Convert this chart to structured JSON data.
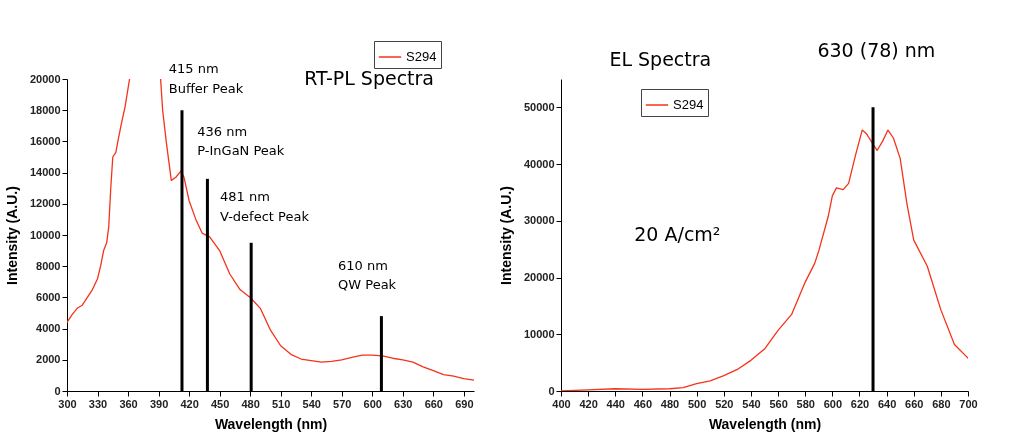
{
  "chart_data": [
    {
      "type": "line",
      "title": "RT-PL Spectra",
      "xlabel": "Wavelength (nm)",
      "ylabel": "Intensity (A.U.)",
      "xlim": [
        300,
        700
      ],
      "xticks": [
        300,
        330,
        360,
        390,
        420,
        450,
        480,
        510,
        540,
        570,
        600,
        630,
        660,
        690
      ],
      "ylim": [
        0,
        20000
      ],
      "yticks": [
        0,
        2000,
        4000,
        6000,
        8000,
        10000,
        12000,
        14000,
        16000,
        18000,
        20000
      ],
      "legend": "top right",
      "series": [
        {
          "name": "S294",
          "color": "#f5331a",
          "x": [
            300,
            305,
            310,
            315,
            320,
            325,
            330,
            333,
            336,
            339,
            341,
            343,
            345,
            348,
            350,
            353,
            357,
            361.5,
            375,
            392,
            394,
            397.5,
            402.5,
            407,
            412,
            415,
            420,
            426.6,
            433,
            440,
            450,
            460,
            470,
            480,
            490,
            500,
            510,
            520,
            530,
            540,
            550,
            560,
            570,
            580,
            590,
            600,
            610,
            620,
            630,
            640,
            650,
            660,
            670,
            680,
            690,
            700
          ],
          "values": [
            4400,
            4900,
            5300,
            5500,
            6000,
            6500,
            7200,
            8000,
            9000,
            9500,
            10500,
            13000,
            15000,
            15300,
            16000,
            17000,
            18200,
            20000,
            null,
            20000,
            18000,
            16000,
            13500,
            13700,
            14100,
            13700,
            12200,
            11000,
            10100,
            9900,
            9000,
            7500,
            6500,
            6000,
            5300,
            3900,
            2900,
            2350,
            2050,
            1950,
            1850,
            1900,
            2000,
            2150,
            2300,
            2300,
            2250,
            2100,
            2000,
            1850,
            1550,
            1300,
            1050,
            950,
            800,
            700
          ]
        },
        {
          "type": "bar",
          "color": "#000000",
          "x": [
            413,
            438,
            481,
            609
          ],
          "values": [
            18000,
            13600,
            9500,
            4800
          ]
        }
      ],
      "annotations": [
        "415 nm\nBuffer Peak",
        "436 nm\nP-InGaN Peak",
        "481 nm\nV-defect Peak",
        "610 nm\nQW Peak"
      ]
    },
    {
      "type": "line",
      "title": "EL Spectra",
      "xlabel": "Wavelength (nm)",
      "ylabel": "Intensity (A.U.)",
      "xlim": [
        400,
        700
      ],
      "xticks": [
        400,
        420,
        440,
        460,
        480,
        500,
        520,
        540,
        560,
        580,
        600,
        620,
        640,
        660,
        680,
        700
      ],
      "ylim": [
        0,
        55000
      ],
      "yticks": [
        0,
        10000,
        20000,
        30000,
        40000,
        50000
      ],
      "legend": "top left",
      "series": [
        {
          "name": "S294",
          "color": "#f5331a",
          "x": [
            400,
            420,
            440,
            460,
            480,
            490,
            500,
            510,
            520,
            530,
            540,
            550,
            560,
            570,
            580,
            587,
            590,
            597,
            600,
            603,
            608,
            612,
            617,
            622,
            625,
            630,
            633,
            637,
            641,
            645,
            650,
            655,
            660,
            670,
            680,
            690,
            700
          ],
          "values": [
            0,
            200,
            400,
            300,
            400,
            600,
            1300,
            1800,
            2700,
            3800,
            5400,
            7400,
            10700,
            13500,
            19200,
            22500,
            24700,
            30800,
            34400,
            35800,
            35500,
            36600,
            41500,
            46000,
            45400,
            43500,
            42400,
            44000,
            46000,
            44600,
            41000,
            33000,
            26600,
            22000,
            14300,
            8200,
            5800
          ]
        },
        {
          "type": "bar",
          "color": "#000000",
          "x": [
            630
          ],
          "values": [
            50000
          ]
        }
      ],
      "annotations": [
        "630 (78) nm",
        "20 A/cm²"
      ]
    }
  ]
}
